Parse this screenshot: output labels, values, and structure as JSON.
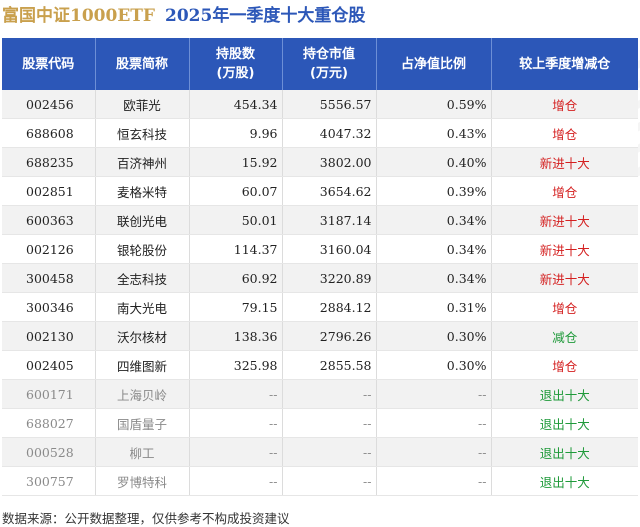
{
  "title": {
    "fund": "富国中证1000ETF",
    "period": "2025年一季度十大重仓股"
  },
  "headers": [
    "股票代码",
    "股票简称",
    "持股数\n(万股)",
    "持仓市值\n(万元)",
    "占净值比例",
    "较上季度增减仓"
  ],
  "rows": [
    {
      "code": "002456",
      "name": "欧菲光",
      "shares": "454.34",
      "value": "5556.57",
      "ratio": "0.59%",
      "change": "增仓",
      "type": "inc"
    },
    {
      "code": "688608",
      "name": "恒玄科技",
      "shares": "9.96",
      "value": "4047.32",
      "ratio": "0.43%",
      "change": "增仓",
      "type": "inc"
    },
    {
      "code": "688235",
      "name": "百济神州",
      "shares": "15.92",
      "value": "3802.00",
      "ratio": "0.40%",
      "change": "新进十大",
      "type": "new"
    },
    {
      "code": "002851",
      "name": "麦格米特",
      "shares": "60.07",
      "value": "3654.62",
      "ratio": "0.39%",
      "change": "增仓",
      "type": "inc"
    },
    {
      "code": "600363",
      "name": "联创光电",
      "shares": "50.01",
      "value": "3187.14",
      "ratio": "0.34%",
      "change": "新进十大",
      "type": "new"
    },
    {
      "code": "002126",
      "name": "银轮股份",
      "shares": "114.37",
      "value": "3160.04",
      "ratio": "0.34%",
      "change": "新进十大",
      "type": "new"
    },
    {
      "code": "300458",
      "name": "全志科技",
      "shares": "60.92",
      "value": "3220.89",
      "ratio": "0.34%",
      "change": "新进十大",
      "type": "new"
    },
    {
      "code": "300346",
      "name": "南大光电",
      "shares": "79.15",
      "value": "2884.12",
      "ratio": "0.31%",
      "change": "增仓",
      "type": "inc"
    },
    {
      "code": "002130",
      "name": "沃尔核材",
      "shares": "138.36",
      "value": "2796.26",
      "ratio": "0.30%",
      "change": "减仓",
      "type": "dec"
    },
    {
      "code": "002405",
      "name": "四维图新",
      "shares": "325.98",
      "value": "2855.58",
      "ratio": "0.30%",
      "change": "增仓",
      "type": "inc"
    },
    {
      "code": "600171",
      "name": "上海贝岭",
      "shares": "--",
      "value": "--",
      "ratio": "--",
      "change": "退出十大",
      "type": "exit"
    },
    {
      "code": "688027",
      "name": "国盾量子",
      "shares": "--",
      "value": "--",
      "ratio": "--",
      "change": "退出十大",
      "type": "exit"
    },
    {
      "code": "000528",
      "name": "柳工",
      "shares": "--",
      "value": "--",
      "ratio": "--",
      "change": "退出十大",
      "type": "exit"
    },
    {
      "code": "300757",
      "name": "罗博特科",
      "shares": "--",
      "value": "--",
      "ratio": "--",
      "change": "退出十大",
      "type": "exit"
    }
  ],
  "colors": {
    "header_bg": "#2c57b8",
    "fund_title": "#c9a04d",
    "increase": "#d42020",
    "new": "#d42020",
    "decrease": "#1f9a3a",
    "exit": "#1f9a3a"
  },
  "source": "数据来源：公开数据整理，仅供参考不构成投资建议"
}
